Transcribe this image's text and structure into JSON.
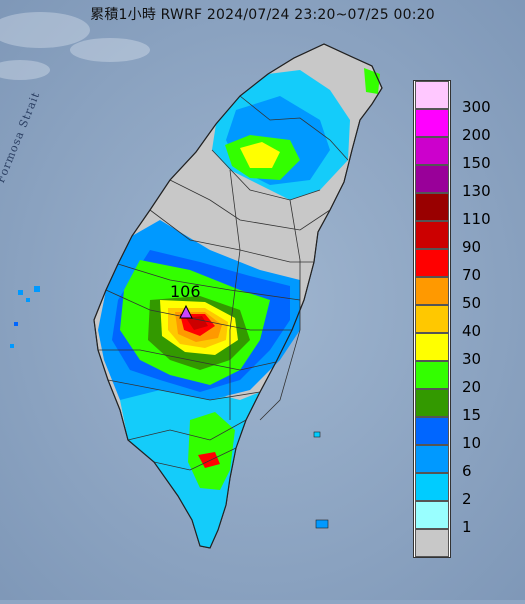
{
  "title": "累積1小時 RWRF 2024/07/24 23:20~07/25 00:20",
  "map_labels": {
    "strait": "Formosa Strait",
    "peak_value": "106"
  },
  "legend": {
    "items": [
      {
        "label": "300",
        "color": "#ffc8ff"
      },
      {
        "label": "200",
        "color": "#ff00ff"
      },
      {
        "label": "150",
        "color": "#cc00cc"
      },
      {
        "label": "130",
        "color": "#990099"
      },
      {
        "label": "110",
        "color": "#990000"
      },
      {
        "label": "90",
        "color": "#cc0000"
      },
      {
        "label": "70",
        "color": "#ff0000"
      },
      {
        "label": "50",
        "color": "#ff9900"
      },
      {
        "label": "40",
        "color": "#ffc800"
      },
      {
        "label": "30",
        "color": "#ffff00"
      },
      {
        "label": "20",
        "color": "#33ff00"
      },
      {
        "label": "15",
        "color": "#339900"
      },
      {
        "label": "10",
        "color": "#0066ff"
      },
      {
        "label": "6",
        "color": "#0099ff"
      },
      {
        "label": "2",
        "color": "#00ccff"
      },
      {
        "label": "1",
        "color": "#99ffff"
      },
      {
        "label": "",
        "color": "#c8c8c8"
      }
    ]
  },
  "colors": {
    "sea": "#8ea6c4",
    "land": "#c8c8c8",
    "marker": "#cc44ff"
  }
}
